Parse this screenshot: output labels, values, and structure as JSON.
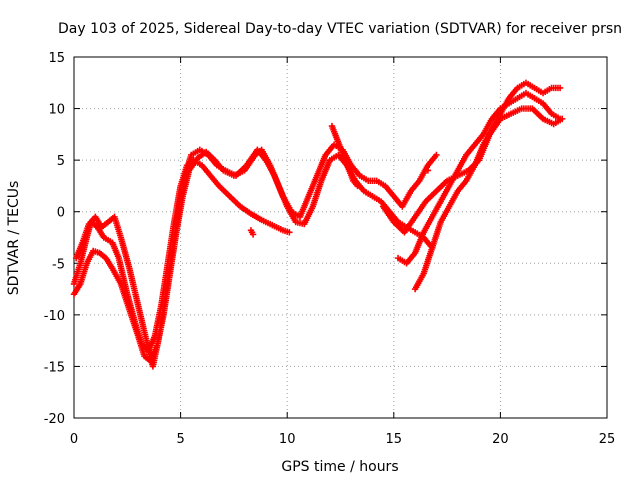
{
  "chart_data": {
    "type": "scatter",
    "title": "Day 103 of 2025, Sidereal Day-to-day VTEC variation (SDTVAR) for receiver prsn",
    "xlabel": "GPS time / hours",
    "ylabel": "SDTVAR / TECUs",
    "xlim": [
      0,
      25
    ],
    "ylim": [
      -20,
      15
    ],
    "xticks": [
      0,
      5,
      10,
      15,
      20,
      25
    ],
    "yticks": [
      -20,
      -15,
      -10,
      -5,
      0,
      5,
      10,
      15
    ],
    "grid": true,
    "marker": "plus",
    "color": "#ff0000",
    "series": [
      {
        "values": [
          [
            0.0,
            -7.0
          ],
          [
            0.3,
            -5.0
          ],
          [
            0.6,
            -2.5
          ],
          [
            0.8,
            -1.0
          ],
          [
            1.1,
            -1.5
          ],
          [
            1.4,
            -2.5
          ],
          [
            1.8,
            -3.0
          ],
          [
            2.1,
            -4.5
          ],
          [
            2.5,
            -8.0
          ],
          [
            2.9,
            -11.0
          ],
          [
            3.2,
            -13.0
          ],
          [
            3.5,
            -13.5
          ],
          [
            3.8,
            -12.0
          ],
          [
            4.1,
            -9.0
          ],
          [
            4.4,
            -5.0
          ],
          [
            4.7,
            -1.0
          ],
          [
            5.0,
            2.5
          ],
          [
            5.3,
            4.5
          ],
          [
            5.6,
            5.0
          ],
          [
            6.0,
            4.5
          ],
          [
            6.4,
            3.5
          ],
          [
            6.8,
            2.5
          ],
          [
            7.3,
            1.5
          ],
          [
            7.8,
            0.5
          ],
          [
            8.3,
            -0.2
          ],
          [
            8.8,
            -0.8
          ],
          [
            9.3,
            -1.3
          ],
          [
            9.8,
            -1.8
          ],
          [
            10.1,
            -2.0
          ]
        ]
      },
      {
        "values": [
          [
            0.0,
            -8.0
          ],
          [
            0.3,
            -7.0
          ],
          [
            0.6,
            -5.0
          ],
          [
            0.9,
            -3.8
          ],
          [
            1.2,
            -4.0
          ],
          [
            1.5,
            -4.5
          ],
          [
            1.8,
            -5.5
          ],
          [
            2.2,
            -7.0
          ],
          [
            2.6,
            -9.5
          ],
          [
            3.0,
            -12.0
          ],
          [
            3.3,
            -14.0
          ],
          [
            3.6,
            -14.5
          ],
          [
            3.9,
            -13.0
          ],
          [
            4.2,
            -10.0
          ],
          [
            4.5,
            -6.0
          ],
          [
            4.8,
            -2.0
          ],
          [
            5.1,
            1.5
          ],
          [
            5.4,
            4.0
          ],
          [
            5.8,
            5.2
          ],
          [
            6.2,
            5.8
          ],
          [
            6.6,
            5.0
          ],
          [
            7.0,
            4.0
          ],
          [
            7.5,
            3.5
          ],
          [
            8.0,
            4.0
          ],
          [
            8.5,
            5.5
          ],
          [
            8.8,
            6.0
          ],
          [
            9.2,
            4.5
          ],
          [
            9.6,
            2.5
          ],
          [
            10.0,
            0.5
          ],
          [
            10.4,
            -1.0
          ],
          [
            10.8,
            -1.2
          ],
          [
            11.2,
            0.5
          ],
          [
            11.6,
            3.0
          ],
          [
            12.0,
            5.0
          ],
          [
            12.4,
            5.5
          ],
          [
            12.8,
            4.5
          ],
          [
            13.2,
            3.0
          ],
          [
            13.6,
            2.0
          ],
          [
            14.0,
            1.5
          ],
          [
            14.4,
            1.0
          ],
          [
            14.8,
            0.0
          ],
          [
            15.2,
            -1.0
          ],
          [
            15.6,
            -1.5
          ],
          [
            16.0,
            -2.0
          ],
          [
            16.4,
            -2.5
          ],
          [
            16.8,
            -3.5
          ]
        ]
      },
      {
        "values": [
          [
            0.1,
            -4.5
          ],
          [
            0.4,
            -3.0
          ],
          [
            0.7,
            -1.2
          ],
          [
            1.0,
            -0.5
          ],
          [
            1.3,
            -1.5
          ],
          [
            1.6,
            -1.0
          ],
          [
            1.9,
            -0.5
          ],
          [
            2.2,
            -2.5
          ],
          [
            2.6,
            -5.5
          ],
          [
            3.0,
            -9.0
          ],
          [
            3.4,
            -12.5
          ],
          [
            3.7,
            -15.0
          ],
          [
            4.0,
            -12.0
          ],
          [
            4.3,
            -8.0
          ],
          [
            4.6,
            -4.0
          ],
          [
            4.9,
            0.0
          ],
          [
            5.2,
            3.5
          ],
          [
            5.5,
            5.5
          ],
          [
            5.9,
            6.0
          ],
          [
            6.3,
            5.5
          ],
          [
            6.7,
            4.5
          ],
          [
            7.1,
            4.0
          ],
          [
            7.6,
            3.5
          ],
          [
            8.1,
            4.5
          ],
          [
            8.6,
            6.0
          ],
          [
            9.0,
            5.0
          ],
          [
            9.4,
            3.5
          ],
          [
            9.8,
            1.5
          ],
          [
            10.2,
            0.0
          ],
          [
            10.6,
            -0.5
          ],
          [
            11.0,
            1.5
          ],
          [
            11.4,
            3.5
          ],
          [
            11.8,
            5.5
          ],
          [
            12.2,
            6.5
          ],
          [
            12.6,
            6.0
          ],
          [
            13.0,
            4.5
          ],
          [
            13.4,
            3.5
          ],
          [
            13.8,
            3.0
          ],
          [
            14.2,
            3.0
          ],
          [
            14.6,
            2.5
          ],
          [
            15.0,
            1.5
          ],
          [
            15.4,
            0.5
          ],
          [
            15.8,
            2.0
          ],
          [
            16.2,
            3.0
          ],
          [
            16.6,
            4.5
          ],
          [
            17.0,
            5.5
          ]
        ]
      },
      {
        "values": [
          [
            15.2,
            -4.5
          ],
          [
            15.6,
            -5.0
          ],
          [
            16.0,
            -4.0
          ],
          [
            16.4,
            -2.0
          ],
          [
            16.8,
            -0.5
          ],
          [
            17.2,
            1.0
          ],
          [
            17.6,
            2.5
          ],
          [
            18.0,
            4.0
          ],
          [
            18.4,
            5.5
          ],
          [
            18.8,
            6.5
          ],
          [
            19.2,
            7.5
          ],
          [
            19.6,
            9.0
          ],
          [
            20.0,
            10.0
          ],
          [
            20.4,
            10.5
          ],
          [
            20.8,
            11.0
          ],
          [
            21.2,
            11.5
          ],
          [
            21.6,
            11.0
          ],
          [
            22.0,
            10.5
          ],
          [
            22.4,
            9.5
          ],
          [
            22.8,
            9.0
          ]
        ]
      },
      {
        "values": [
          [
            16.0,
            -7.5
          ],
          [
            16.4,
            -6.0
          ],
          [
            16.8,
            -3.5
          ],
          [
            17.2,
            -1.0
          ],
          [
            17.6,
            0.5
          ],
          [
            18.0,
            2.0
          ],
          [
            18.4,
            3.0
          ],
          [
            18.8,
            4.5
          ],
          [
            19.2,
            6.5
          ],
          [
            19.6,
            8.0
          ],
          [
            20.0,
            9.5
          ],
          [
            20.4,
            11.0
          ],
          [
            20.8,
            12.0
          ],
          [
            21.2,
            12.5
          ],
          [
            21.6,
            12.0
          ],
          [
            22.0,
            11.5
          ],
          [
            22.4,
            12.0
          ],
          [
            22.8,
            12.0
          ]
        ]
      },
      {
        "values": [
          [
            14.5,
            0.5
          ],
          [
            15.0,
            -1.0
          ],
          [
            15.5,
            -2.0
          ],
          [
            16.0,
            -0.5
          ],
          [
            16.5,
            1.0
          ],
          [
            17.0,
            2.0
          ],
          [
            17.5,
            3.0
          ],
          [
            18.0,
            3.5
          ],
          [
            18.5,
            4.0
          ],
          [
            19.0,
            5.0
          ],
          [
            19.5,
            7.5
          ],
          [
            20.0,
            9.0
          ],
          [
            20.5,
            9.5
          ],
          [
            21.0,
            10.0
          ],
          [
            21.5,
            10.0
          ],
          [
            22.0,
            9.0
          ],
          [
            22.5,
            8.5
          ],
          [
            22.9,
            9.0
          ]
        ]
      },
      {
        "values": [
          [
            8.3,
            -1.8
          ],
          [
            8.4,
            -2.2
          ],
          [
            12.1,
            8.3
          ],
          [
            13.1,
            3.0
          ],
          [
            13.3,
            2.5
          ],
          [
            16.6,
            4.0
          ]
        ]
      }
    ]
  }
}
